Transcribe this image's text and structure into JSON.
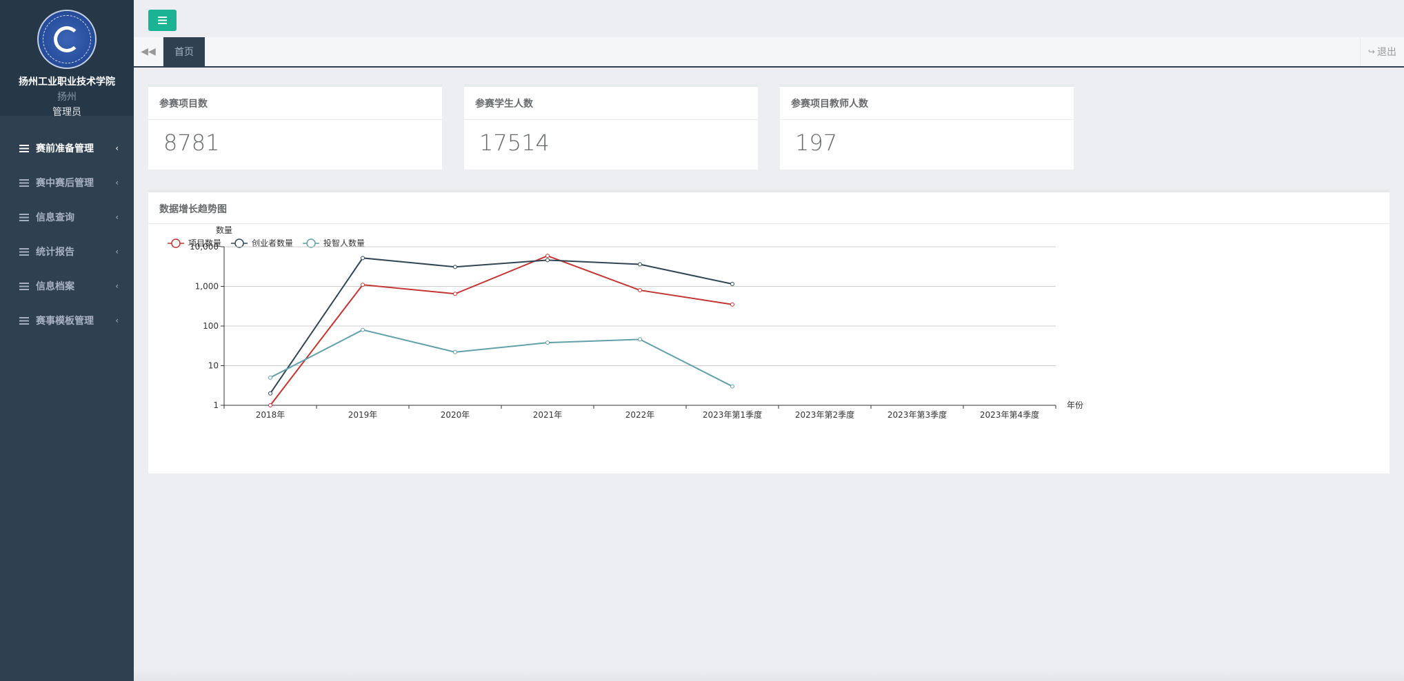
{
  "sidebar": {
    "school_name": "扬州工业职业技术学院",
    "city": "扬州",
    "role": "管理员",
    "items": [
      {
        "label": "赛前准备管理",
        "active": true
      },
      {
        "label": "赛中赛后管理",
        "active": false
      },
      {
        "label": "信息查询",
        "active": false
      },
      {
        "label": "统计报告",
        "active": false
      },
      {
        "label": "信息档案",
        "active": false
      },
      {
        "label": "赛事模板管理",
        "active": false
      }
    ]
  },
  "tabs": {
    "home_label": "首页",
    "logout_label": "退出"
  },
  "stats": [
    {
      "title": "参赛项目数",
      "value": "8781"
    },
    {
      "title": "参赛学生人数",
      "value": "17514"
    },
    {
      "title": "参赛项目教师人数",
      "value": "197"
    }
  ],
  "colors": {
    "accent": "#1ab394",
    "sidebar": "#2f4050"
  },
  "chart_data": {
    "type": "line",
    "title": "数据增长趋势图",
    "xlabel": "年份",
    "ylabel": "数量",
    "y_scale": "log",
    "ylim": [
      1,
      10000
    ],
    "y_ticks": [
      "1",
      "10",
      "100",
      "1,000",
      "10,000"
    ],
    "y_tick_values": [
      1,
      10,
      100,
      1000,
      10000
    ],
    "categories": [
      "2018年",
      "2019年",
      "2020年",
      "2021年",
      "2022年",
      "2023年第1季度",
      "2023年第2季度",
      "2023年第3季度",
      "2023年第4季度"
    ],
    "legend_position": "top-left",
    "grid": true,
    "series": [
      {
        "name": "项目数量",
        "color": "#c23531",
        "values": [
          1,
          1100,
          650,
          5900,
          800,
          350,
          null,
          null,
          null
        ]
      },
      {
        "name": "创业者数量",
        "color": "#2f4554",
        "values": [
          2,
          5200,
          3100,
          4600,
          3600,
          1150,
          null,
          null,
          null
        ]
      },
      {
        "name": "投智人数量",
        "color": "#61a0a8",
        "values": [
          5,
          80,
          22,
          38,
          46,
          3,
          null,
          null,
          null
        ]
      }
    ]
  }
}
